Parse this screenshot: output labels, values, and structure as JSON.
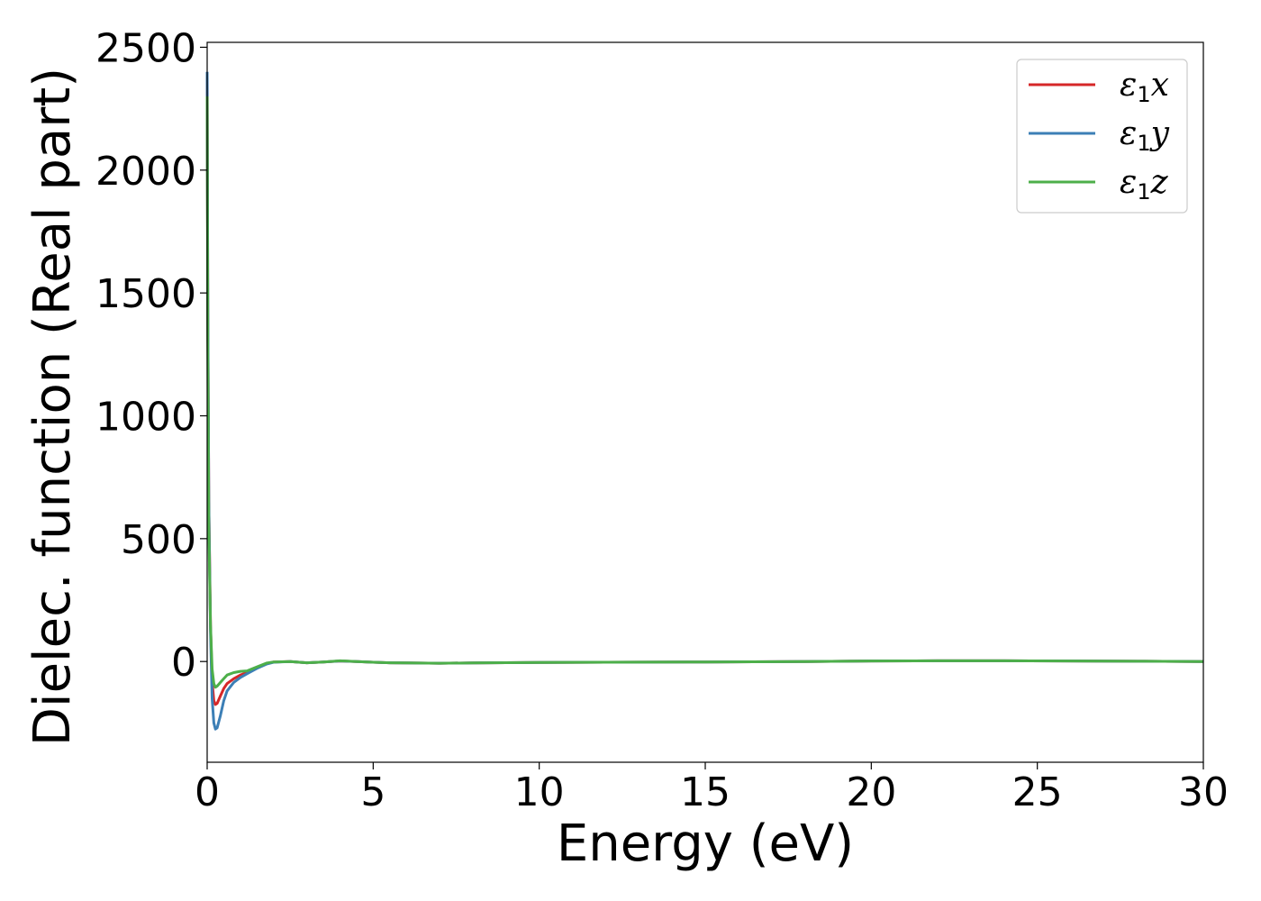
{
  "chart_data": {
    "type": "line",
    "xlabel": "Energy (eV)",
    "ylabel": "Dielec. function (Real part)",
    "xlim": [
      0,
      30
    ],
    "ylim": [
      -410,
      2520
    ],
    "xticks": [
      0,
      5,
      10,
      15,
      20,
      25,
      30
    ],
    "xtick_labels": [
      "0",
      "5",
      "10",
      "15",
      "20",
      "25",
      "30"
    ],
    "yticks": [
      0,
      500,
      1000,
      1500,
      2000,
      2500
    ],
    "ytick_labels": [
      "0",
      "500",
      "1000",
      "1500",
      "2000",
      "2500"
    ],
    "grid": false,
    "legend_position": "top-right",
    "series": [
      {
        "name": "ε1x",
        "legend_base": "ε",
        "legend_sub": "1",
        "legend_suffix": "x",
        "color": "#d62728",
        "x": [
          0.0,
          0.02,
          0.05,
          0.1,
          0.15,
          0.2,
          0.25,
          0.3,
          0.4,
          0.5,
          0.6,
          0.8,
          1.0,
          1.2,
          1.5,
          1.8,
          2.0,
          2.5,
          3.0,
          3.5,
          4.0,
          4.5,
          5.0,
          5.5,
          6.0,
          7.0,
          8.0,
          10.0,
          12.0,
          15.0,
          18.0,
          20.0,
          22.0,
          24.0,
          26.0,
          28.0,
          30.0
        ],
        "y": [
          2380,
          1450,
          650,
          150,
          -80,
          -160,
          -175,
          -170,
          -140,
          -110,
          -90,
          -70,
          -55,
          -45,
          -25,
          -8,
          -2,
          0,
          -5,
          -2,
          2,
          0,
          -3,
          -5,
          -6,
          -7,
          -6,
          -4,
          -3,
          -2,
          0,
          2,
          3,
          3,
          2,
          1,
          0
        ]
      },
      {
        "name": "ε1y",
        "legend_base": "ε",
        "legend_sub": "1",
        "legend_suffix": "y",
        "color": "#3c7fb6",
        "x": [
          0.0,
          0.02,
          0.05,
          0.1,
          0.15,
          0.2,
          0.25,
          0.3,
          0.4,
          0.5,
          0.6,
          0.8,
          1.0,
          1.2,
          1.5,
          1.8,
          2.0,
          2.5,
          3.0,
          3.5,
          4.0,
          4.5,
          5.0,
          5.5,
          6.0,
          7.0,
          8.0,
          10.0,
          12.0,
          15.0,
          18.0,
          20.0,
          22.0,
          24.0,
          26.0,
          28.0,
          30.0
        ],
        "y": [
          2400,
          1500,
          650,
          120,
          -150,
          -250,
          -275,
          -270,
          -220,
          -160,
          -120,
          -85,
          -65,
          -50,
          -28,
          -10,
          -3,
          0,
          -5,
          -2,
          2,
          0,
          -3,
          -5,
          -6,
          -7,
          -6,
          -4,
          -3,
          -2,
          0,
          2,
          3,
          3,
          2,
          1,
          0
        ]
      },
      {
        "name": "ε1z",
        "legend_base": "ε",
        "legend_sub": "1",
        "legend_suffix": "z",
        "color": "#4daf4a",
        "x": [
          0.0,
          0.02,
          0.05,
          0.1,
          0.15,
          0.2,
          0.25,
          0.3,
          0.4,
          0.5,
          0.6,
          0.8,
          1.0,
          1.2,
          1.5,
          1.8,
          2.0,
          2.5,
          3.0,
          3.5,
          4.0,
          4.5,
          5.0,
          5.5,
          6.0,
          7.0,
          8.0,
          10.0,
          12.0,
          15.0,
          18.0,
          20.0,
          22.0,
          24.0,
          26.0,
          28.0,
          30.0
        ],
        "y": [
          2300,
          1300,
          550,
          150,
          -30,
          -90,
          -105,
          -100,
          -85,
          -70,
          -55,
          -45,
          -40,
          -38,
          -22,
          -6,
          -2,
          0,
          -5,
          -2,
          3,
          0,
          -3,
          -5,
          -6,
          -7,
          -6,
          -4,
          -3,
          -2,
          0,
          2,
          3,
          3,
          2,
          1,
          0
        ]
      }
    ]
  }
}
